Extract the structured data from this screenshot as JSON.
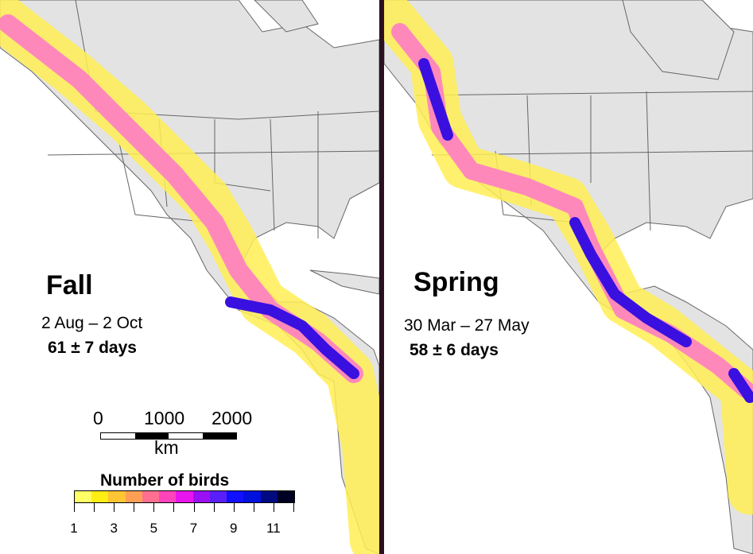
{
  "panels": [
    {
      "season": "Fall",
      "dates": "2 Aug – 2 Oct",
      "duration": "61 ± 7 days"
    },
    {
      "season": "Spring",
      "dates": "30 Mar – 27 May",
      "duration": "58 ± 6 days"
    }
  ],
  "scale_bar": {
    "labels": [
      "0",
      "1000",
      "2000"
    ],
    "unit": "km"
  },
  "legend": {
    "title": "Number of birds",
    "tick_labels": [
      "1",
      "3",
      "5",
      "7",
      "9",
      "11"
    ],
    "colors": [
      "#ffff66",
      "#ffee11",
      "#ffc533",
      "#ff9f55",
      "#ff6f8f",
      "#ff44bb",
      "#e815ee",
      "#9a10f5",
      "#5a1ff8",
      "#1010ff",
      "#0010dd",
      "#000a80",
      "#000022"
    ]
  },
  "map_colors": {
    "land": "#e3e3e3",
    "border": "#666666",
    "low": "#ffee55",
    "mid": "#ff80b0",
    "high": "#3a10e0"
  }
}
